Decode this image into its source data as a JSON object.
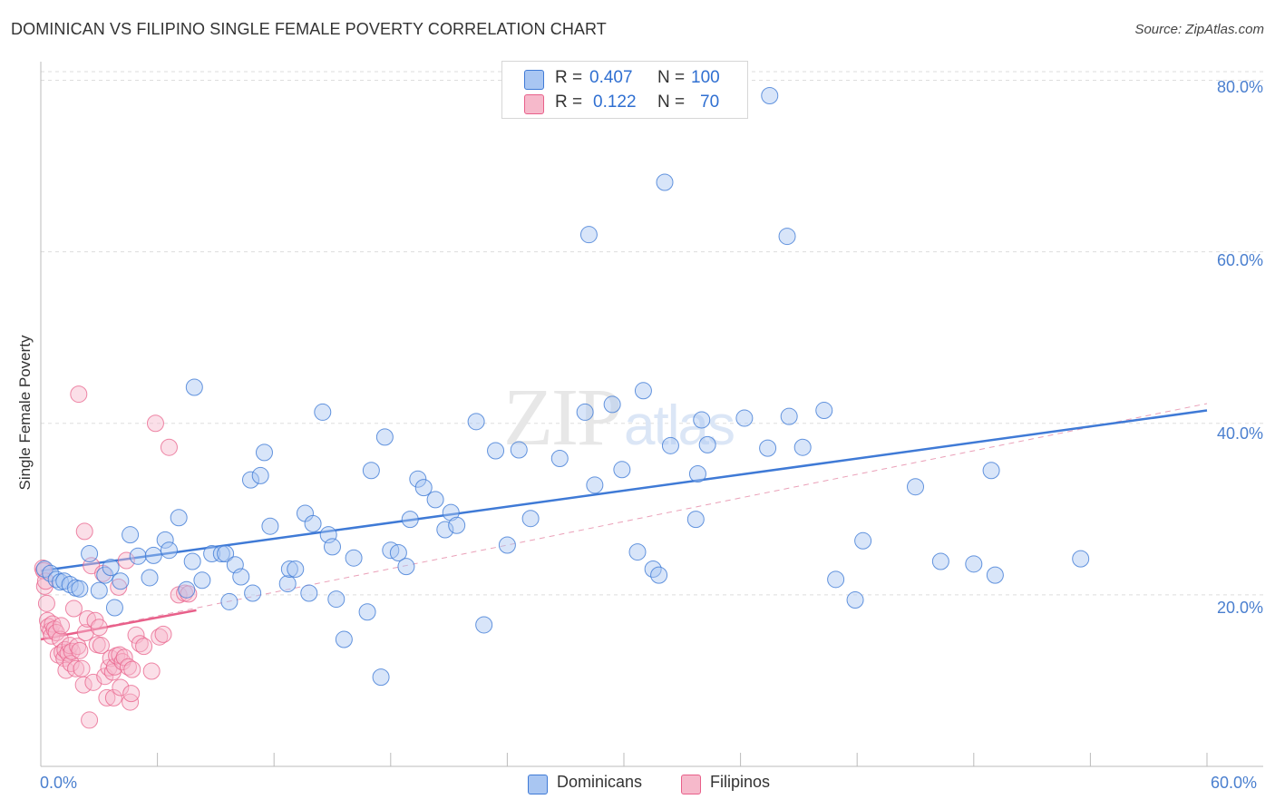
{
  "title": "DOMINICAN VS FILIPINO SINGLE FEMALE POVERTY CORRELATION CHART",
  "source": "Source: ZipAtlas.com",
  "watermark": "ZIPatlas",
  "colors": {
    "blue": "#3f7ad6",
    "blue_fill": "#a9c6f2",
    "pink": "#e8608a",
    "pink_fill": "#f6b9cb",
    "tick_text": "#4a7fcf"
  },
  "legend": {
    "rows": [
      {
        "r_label": "R =",
        "r_value": "0.407",
        "n_label": "N =",
        "n_value": "100"
      },
      {
        "r_label": "R =",
        "r_value": "0.122",
        "n_label": "N =",
        "n_value": "70"
      }
    ]
  },
  "bottom_legend": [
    "Dominicans",
    "Filipinos"
  ],
  "chart_data": {
    "type": "scatter",
    "title": "DOMINICAN VS FILIPINO SINGLE FEMALE POVERTY CORRELATION CHART",
    "xlabel": "",
    "ylabel": "Single Female Poverty",
    "xlim": [
      0,
      60
    ],
    "ylim": [
      0,
      81
    ],
    "x_tick_labels": [
      "0.0%",
      "60.0%"
    ],
    "y_ticks": [
      20,
      40,
      60,
      80
    ],
    "y_tick_labels": [
      "20.0%",
      "40.0%",
      "60.0%",
      "80.0%"
    ],
    "grid": true,
    "legend_position": "top-center",
    "series": [
      {
        "name": "Dominicans",
        "r": 0.407,
        "n": 100,
        "trend": {
          "x": [
            0,
            60
          ],
          "y": [
            22.8,
            41.5
          ],
          "style": "solid"
        },
        "points": [
          [
            0.2,
            23
          ],
          [
            0.5,
            22.5
          ],
          [
            0.8,
            21.8
          ],
          [
            1.0,
            21.5
          ],
          [
            1.2,
            21.6
          ],
          [
            1.5,
            21.2
          ],
          [
            1.8,
            20.8
          ],
          [
            2.0,
            20.7
          ],
          [
            2.5,
            24.8
          ],
          [
            3.0,
            20.5
          ],
          [
            3.3,
            22.3
          ],
          [
            3.6,
            23.2
          ],
          [
            3.8,
            18.5
          ],
          [
            4.1,
            21.6
          ],
          [
            4.6,
            27.0
          ],
          [
            5.0,
            24.5
          ],
          [
            5.6,
            22.0
          ],
          [
            5.8,
            24.6
          ],
          [
            6.4,
            26.4
          ],
          [
            6.6,
            25.2
          ],
          [
            7.1,
            29.0
          ],
          [
            7.5,
            20.6
          ],
          [
            7.8,
            23.9
          ],
          [
            7.9,
            44.2
          ],
          [
            8.3,
            21.7
          ],
          [
            8.8,
            24.8
          ],
          [
            9.3,
            24.8
          ],
          [
            9.5,
            24.8
          ],
          [
            9.7,
            19.2
          ],
          [
            10.0,
            23.5
          ],
          [
            10.3,
            22.1
          ],
          [
            10.8,
            33.4
          ],
          [
            10.9,
            20.2
          ],
          [
            11.3,
            33.9
          ],
          [
            11.5,
            36.6
          ],
          [
            11.8,
            28.0
          ],
          [
            12.7,
            21.3
          ],
          [
            12.8,
            23.0
          ],
          [
            13.1,
            23.0
          ],
          [
            13.6,
            29.5
          ],
          [
            13.8,
            20.2
          ],
          [
            14.0,
            28.3
          ],
          [
            14.5,
            41.3
          ],
          [
            14.8,
            27.0
          ],
          [
            15.0,
            25.6
          ],
          [
            15.2,
            19.5
          ],
          [
            15.6,
            14.8
          ],
          [
            16.1,
            24.3
          ],
          [
            16.8,
            18.0
          ],
          [
            17.0,
            34.5
          ],
          [
            17.5,
            10.4
          ],
          [
            17.7,
            38.4
          ],
          [
            18.0,
            25.2
          ],
          [
            18.4,
            24.9
          ],
          [
            18.8,
            23.3
          ],
          [
            19.0,
            28.8
          ],
          [
            19.4,
            33.5
          ],
          [
            19.7,
            32.5
          ],
          [
            20.3,
            31.1
          ],
          [
            20.8,
            27.6
          ],
          [
            21.1,
            29.6
          ],
          [
            21.4,
            28.1
          ],
          [
            22.4,
            40.2
          ],
          [
            22.8,
            16.5
          ],
          [
            23.4,
            36.8
          ],
          [
            24.0,
            25.8
          ],
          [
            24.6,
            36.9
          ],
          [
            25.2,
            28.9
          ],
          [
            26.7,
            35.9
          ],
          [
            28.0,
            41.3
          ],
          [
            28.2,
            62.0
          ],
          [
            28.5,
            32.8
          ],
          [
            29.4,
            42.2
          ],
          [
            29.9,
            34.6
          ],
          [
            30.7,
            25.0
          ],
          [
            31.0,
            43.8
          ],
          [
            31.5,
            23.0
          ],
          [
            31.8,
            22.3
          ],
          [
            32.1,
            68.1
          ],
          [
            32.4,
            37.4
          ],
          [
            33.7,
            28.8
          ],
          [
            33.8,
            34.1
          ],
          [
            34.0,
            40.4
          ],
          [
            34.3,
            37.5
          ],
          [
            36.2,
            40.6
          ],
          [
            37.4,
            37.1
          ],
          [
            37.5,
            78.2
          ],
          [
            38.4,
            61.8
          ],
          [
            38.5,
            40.8
          ],
          [
            39.2,
            37.2
          ],
          [
            40.3,
            41.5
          ],
          [
            40.9,
            21.8
          ],
          [
            41.9,
            19.4
          ],
          [
            42.3,
            26.3
          ],
          [
            45.0,
            32.6
          ],
          [
            46.3,
            23.9
          ],
          [
            48.0,
            23.6
          ],
          [
            48.9,
            34.5
          ],
          [
            49.1,
            22.3
          ],
          [
            53.5,
            24.2
          ]
        ]
      },
      {
        "name": "Filipinos",
        "r": 0.122,
        "n": 70,
        "trend": {
          "x": [
            0,
            8
          ],
          "y": [
            14.8,
            18.2
          ],
          "style": "solid"
        },
        "trend_extended": {
          "x": [
            0,
            60
          ],
          "y": [
            14.8,
            42.3
          ],
          "style": "dashed"
        },
        "points": [
          [
            0.1,
            23.1
          ],
          [
            0.15,
            22.8
          ],
          [
            0.2,
            21.0
          ],
          [
            0.25,
            21.6
          ],
          [
            0.3,
            19.0
          ],
          [
            0.35,
            17.0
          ],
          [
            0.4,
            16.3
          ],
          [
            0.5,
            15.8
          ],
          [
            0.55,
            15.2
          ],
          [
            0.6,
            16.6
          ],
          [
            0.7,
            16.0
          ],
          [
            0.8,
            15.6
          ],
          [
            0.9,
            13.0
          ],
          [
            1.0,
            14.8
          ],
          [
            1.05,
            16.4
          ],
          [
            1.1,
            13.3
          ],
          [
            1.2,
            12.6
          ],
          [
            1.25,
            13.6
          ],
          [
            1.3,
            11.2
          ],
          [
            1.4,
            13.2
          ],
          [
            1.5,
            14.1
          ],
          [
            1.55,
            12.0
          ],
          [
            1.6,
            13.4
          ],
          [
            1.7,
            18.4
          ],
          [
            1.8,
            11.4
          ],
          [
            1.9,
            14.0
          ],
          [
            1.95,
            43.4
          ],
          [
            2.0,
            13.5
          ],
          [
            2.1,
            11.4
          ],
          [
            2.2,
            9.5
          ],
          [
            2.25,
            27.4
          ],
          [
            2.3,
            15.6
          ],
          [
            2.4,
            17.2
          ],
          [
            2.5,
            5.4
          ],
          [
            2.6,
            23.4
          ],
          [
            2.7,
            9.8
          ],
          [
            2.8,
            17.0
          ],
          [
            2.9,
            14.2
          ],
          [
            3.0,
            16.2
          ],
          [
            3.1,
            14.1
          ],
          [
            3.2,
            22.5
          ],
          [
            3.3,
            10.5
          ],
          [
            3.4,
            8.0
          ],
          [
            3.5,
            11.5
          ],
          [
            3.6,
            12.6
          ],
          [
            3.7,
            11.0
          ],
          [
            3.75,
            8.0
          ],
          [
            3.8,
            11.6
          ],
          [
            3.9,
            12.9
          ],
          [
            4.0,
            20.9
          ],
          [
            4.05,
            13.0
          ],
          [
            4.1,
            9.2
          ],
          [
            4.2,
            12.2
          ],
          [
            4.3,
            12.7
          ],
          [
            4.4,
            24.0
          ],
          [
            4.5,
            11.6
          ],
          [
            4.6,
            7.5
          ],
          [
            4.65,
            8.5
          ],
          [
            4.7,
            11.3
          ],
          [
            4.9,
            15.3
          ],
          [
            5.1,
            14.3
          ],
          [
            5.3,
            14.0
          ],
          [
            5.7,
            11.1
          ],
          [
            5.9,
            40.0
          ],
          [
            6.1,
            15.1
          ],
          [
            6.3,
            15.4
          ],
          [
            6.6,
            37.2
          ],
          [
            7.1,
            20.0
          ],
          [
            7.4,
            20.2
          ],
          [
            7.6,
            20.1
          ]
        ]
      }
    ]
  }
}
